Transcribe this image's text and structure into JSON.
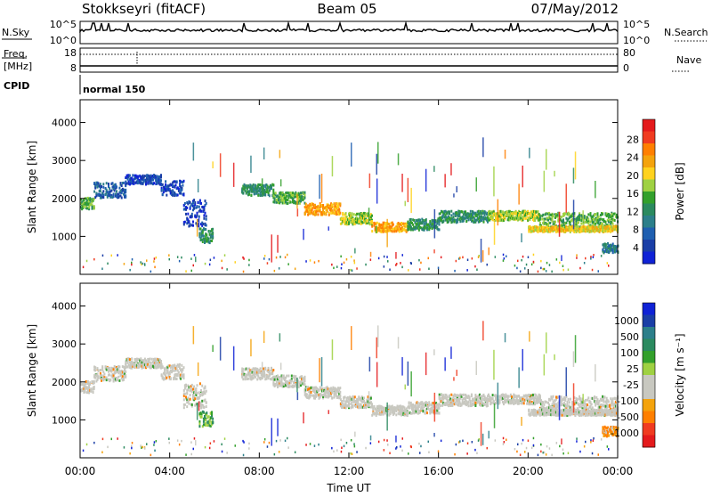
{
  "header": {
    "station": "Stokkseyri (fitACF)",
    "beam": "Beam 05",
    "date": "07/May/2012"
  },
  "top_panels": {
    "nsky_label": "N.Sky",
    "nsky_ticks": [
      "10^5",
      "10^0"
    ],
    "nsearch_label": "N.Search",
    "nsearch_ticks": [
      "10^5",
      "10^0"
    ],
    "freq_label_1": "Freq.",
    "freq_label_2": "[MHz]",
    "freq_ticks": [
      "18",
      "8"
    ],
    "nave_label": "Nave",
    "nave_ticks": [
      "80",
      "0"
    ],
    "cpid_label": "CPID",
    "cpid_text": "normal 150"
  },
  "chart_data": [
    {
      "type": "heatmap",
      "name": "power",
      "ylabel": "Slant Range [km]",
      "xlabel": "Time UT",
      "xlim": [
        0,
        24
      ],
      "ylim": [
        0,
        4600
      ],
      "x_ticks": [
        "00:00",
        "04:00",
        "08:00",
        "12:00",
        "16:00",
        "20:00",
        "00:00"
      ],
      "y_ticks": [
        1000,
        2000,
        3000,
        4000
      ],
      "colorbar": {
        "label": "Power [dB]",
        "ticks": [
          "28",
          "24",
          "20",
          "16",
          "12",
          "8",
          "4"
        ],
        "colors": [
          "#e41a1c",
          "#f03b20",
          "#ff7f00",
          "#f4a30c",
          "#ffd21e",
          "#9fd142",
          "#33a02c",
          "#2b8a5f",
          "#2c7f8a",
          "#1f5fb0",
          "#1a3ea6",
          "#0f22d6"
        ]
      },
      "bands": [
        {
          "t": [
            0.0,
            0.6
          ],
          "r": [
            1750,
            2050
          ],
          "level": 6
        },
        {
          "t": [
            0.6,
            2.0
          ],
          "r": [
            2050,
            2450
          ],
          "level": 9
        },
        {
          "t": [
            2.0,
            3.6
          ],
          "r": [
            2400,
            2650
          ],
          "level": 10
        },
        {
          "t": [
            3.6,
            4.6
          ],
          "r": [
            2100,
            2500
          ],
          "level": 10
        },
        {
          "t": [
            4.6,
            5.6
          ],
          "r": [
            1300,
            2000
          ],
          "level": 10
        },
        {
          "t": [
            5.3,
            5.9
          ],
          "r": [
            850,
            1250
          ],
          "level": 7
        },
        {
          "t": [
            7.2,
            8.6
          ],
          "r": [
            2100,
            2400
          ],
          "level": 7
        },
        {
          "t": [
            8.6,
            10.0
          ],
          "r": [
            1900,
            2200
          ],
          "level": 6
        },
        {
          "t": [
            10.0,
            11.6
          ],
          "r": [
            1600,
            1900
          ],
          "level": 3
        },
        {
          "t": [
            11.6,
            13.0
          ],
          "r": [
            1350,
            1650
          ],
          "level": 5
        },
        {
          "t": [
            13.0,
            14.6
          ],
          "r": [
            1150,
            1400
          ],
          "level": 3
        },
        {
          "t": [
            14.6,
            16.0
          ],
          "r": [
            1200,
            1500
          ],
          "level": 7
        },
        {
          "t": [
            16.0,
            18.2
          ],
          "r": [
            1400,
            1700
          ],
          "level": 7
        },
        {
          "t": [
            18.2,
            20.5
          ],
          "r": [
            1450,
            1700
          ],
          "level": 5
        },
        {
          "t": [
            20.5,
            24.0
          ],
          "r": [
            1200,
            1650
          ],
          "level": 6
        },
        {
          "t": [
            20.0,
            24.0
          ],
          "r": [
            1150,
            1300
          ],
          "level": 4
        },
        {
          "t": [
            23.3,
            24.0
          ],
          "r": [
            600,
            850
          ],
          "level": 8
        }
      ]
    },
    {
      "type": "heatmap",
      "name": "velocity",
      "ylabel": "Slant Range [km]",
      "xlabel": "Time UT",
      "xlim": [
        0,
        24
      ],
      "ylim": [
        0,
        4600
      ],
      "x_ticks": [
        "00:00",
        "04:00",
        "08:00",
        "12:00",
        "16:00",
        "20:00",
        "00:00"
      ],
      "y_ticks": [
        1000,
        2000,
        3000,
        4000
      ],
      "colorbar": {
        "label": "Velocity [m s⁻¹]",
        "ticks": [
          "1000",
          "500",
          "100",
          "25",
          "-25",
          "-100",
          "-500",
          "-1000"
        ],
        "colors": [
          "#0f22d6",
          "#1a3ea6",
          "#2c7f8a",
          "#2b8a5f",
          "#33a02c",
          "#9fd142",
          "#c8c8c0",
          "#c8c8c0",
          "#f4a30c",
          "#ff7f00",
          "#f03b20",
          "#e41a1c"
        ]
      },
      "bands": [
        {
          "t": [
            0.0,
            0.6
          ],
          "r": [
            1750,
            2050
          ],
          "level": 6
        },
        {
          "t": [
            0.6,
            2.0
          ],
          "r": [
            2050,
            2450
          ],
          "level": 6
        },
        {
          "t": [
            2.0,
            3.6
          ],
          "r": [
            2400,
            2650
          ],
          "level": 6
        },
        {
          "t": [
            3.6,
            4.6
          ],
          "r": [
            2100,
            2500
          ],
          "level": 6
        },
        {
          "t": [
            4.6,
            5.6
          ],
          "r": [
            1300,
            2000
          ],
          "level": 6
        },
        {
          "t": [
            5.3,
            5.9
          ],
          "r": [
            850,
            1250
          ],
          "level": 4
        },
        {
          "t": [
            7.2,
            8.6
          ],
          "r": [
            2100,
            2400
          ],
          "level": 6
        },
        {
          "t": [
            8.6,
            10.0
          ],
          "r": [
            1900,
            2200
          ],
          "level": 6
        },
        {
          "t": [
            10.0,
            11.6
          ],
          "r": [
            1600,
            1900
          ],
          "level": 6
        },
        {
          "t": [
            11.6,
            13.0
          ],
          "r": [
            1350,
            1650
          ],
          "level": 6
        },
        {
          "t": [
            13.0,
            14.6
          ],
          "r": [
            1150,
            1400
          ],
          "level": 6
        },
        {
          "t": [
            14.6,
            16.0
          ],
          "r": [
            1200,
            1500
          ],
          "level": 6
        },
        {
          "t": [
            16.0,
            18.2
          ],
          "r": [
            1400,
            1700
          ],
          "level": 6
        },
        {
          "t": [
            18.2,
            20.5
          ],
          "r": [
            1450,
            1700
          ],
          "level": 6
        },
        {
          "t": [
            20.5,
            24.0
          ],
          "r": [
            1200,
            1650
          ],
          "level": 6
        },
        {
          "t": [
            20.0,
            24.0
          ],
          "r": [
            1150,
            1300
          ],
          "level": 6
        },
        {
          "t": [
            23.3,
            24.0
          ],
          "r": [
            600,
            850
          ],
          "level": 8
        }
      ]
    }
  ]
}
